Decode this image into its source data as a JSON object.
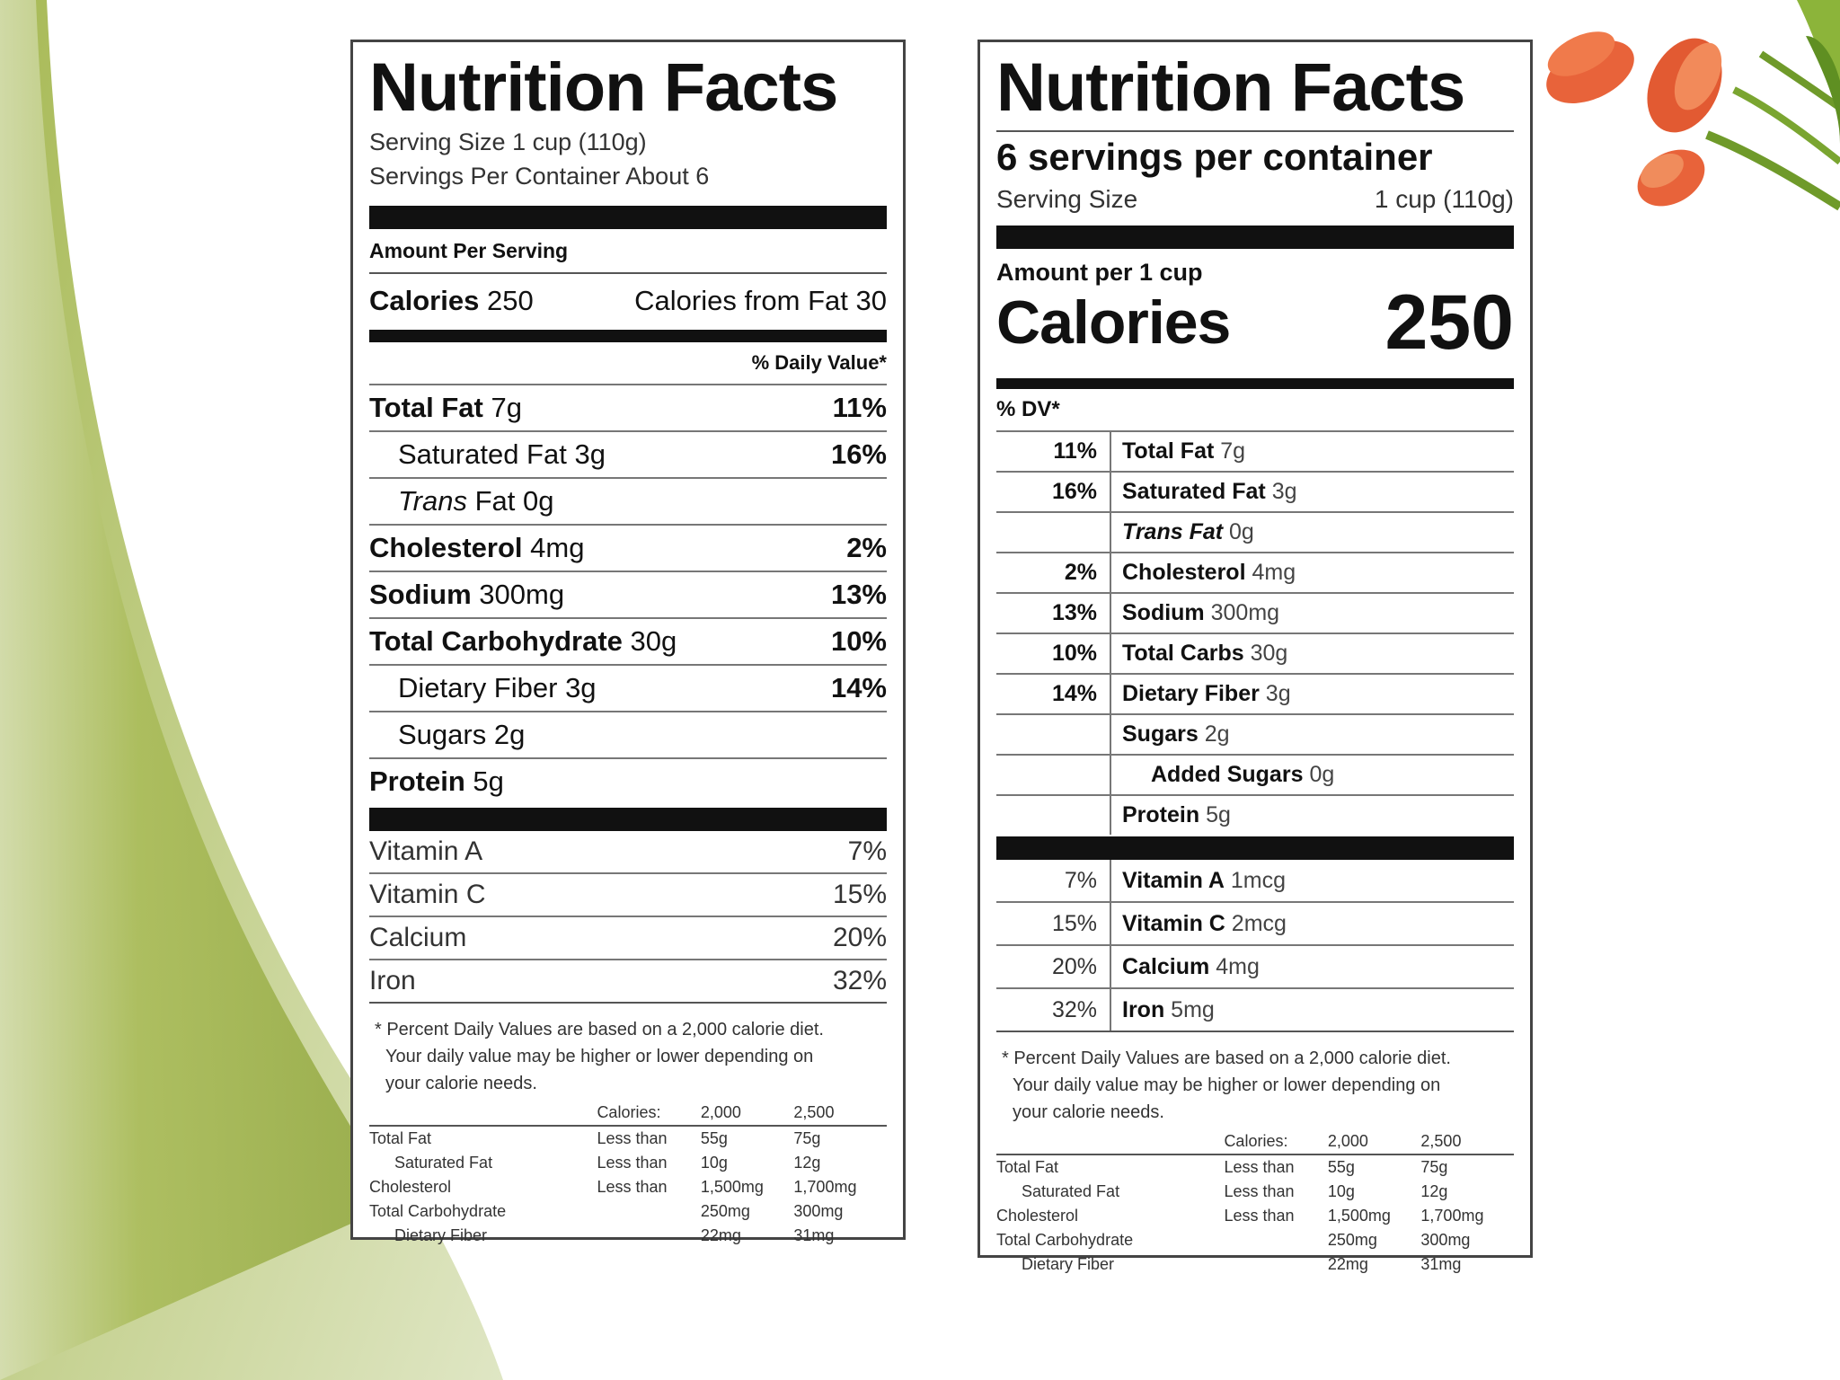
{
  "old_label": {
    "title": "Nutrition Facts",
    "serving_size": "Serving Size 1 cup (110g)",
    "servings_per_container": "Servings Per Container About 6",
    "amount_per_serving": "Amount Per Serving",
    "calories_label": "Calories",
    "calories_value": "250",
    "calories_from_fat": "Calories from Fat 30",
    "daily_value_header": "% Daily Value*",
    "nutrients": [
      {
        "name": "Total Fat",
        "amount": "7g",
        "pct": "11%",
        "bold": true,
        "indent": false
      },
      {
        "name": "Saturated Fat",
        "amount": "3g",
        "pct": "16%",
        "bold": false,
        "indent": true
      },
      {
        "name": "Trans",
        "amount": "Fat 0g",
        "pct": "",
        "bold": false,
        "indent": true
      },
      {
        "name": "Cholesterol",
        "amount": "4mg",
        "pct": "2%",
        "bold": true,
        "indent": false
      },
      {
        "name": "Sodium",
        "amount": "300mg",
        "pct": "13%",
        "bold": true,
        "indent": false
      },
      {
        "name": "Total Carbohydrate",
        "amount": "30g",
        "pct": "10%",
        "bold": true,
        "indent": false
      },
      {
        "name": "Dietary Fiber",
        "amount": "3g",
        "pct": "14%",
        "bold": false,
        "indent": true
      },
      {
        "name": "Sugars",
        "amount": "2g",
        "pct": "",
        "bold": false,
        "indent": true
      },
      {
        "name": "Protein",
        "amount": "5g",
        "pct": "",
        "bold": true,
        "indent": false
      }
    ],
    "vitamins": [
      {
        "name": "Vitamin A",
        "pct": "7%"
      },
      {
        "name": "Vitamin C",
        "pct": "15%"
      },
      {
        "name": "Calcium",
        "pct": "20%"
      },
      {
        "name": "Iron",
        "pct": "32%"
      }
    ],
    "footnote_lines": [
      "* Percent Daily Values are based on a 2,000 calorie diet.",
      "Your daily value may be higher or lower depending on",
      "your calorie needs."
    ]
  },
  "new_label": {
    "title": "Nutrition Facts",
    "servings_per_container": "6 servings per container",
    "serving_size_label": "Serving Size",
    "serving_size_value": "1 cup (110g)",
    "amount_per": "Amount per 1 cup",
    "calories_label": "Calories",
    "calories_value": "250",
    "dv_header": "% DV*",
    "rows": [
      {
        "pct": "11%",
        "name": "Total Fat",
        "amount": "7g",
        "indent": false,
        "italic": false
      },
      {
        "pct": "16%",
        "name": "Saturated Fat",
        "amount": "3g",
        "indent": false,
        "italic": false
      },
      {
        "pct": "",
        "name": "Trans Fat",
        "amount": "0g",
        "indent": false,
        "italic": true
      },
      {
        "pct": "2%",
        "name": "Cholesterol",
        "amount": "4mg",
        "indent": false,
        "italic": false
      },
      {
        "pct": "13%",
        "name": "Sodium",
        "amount": "300mg",
        "indent": false,
        "italic": false
      },
      {
        "pct": "10%",
        "name": "Total Carbs",
        "amount": "30g",
        "indent": false,
        "italic": false
      },
      {
        "pct": "14%",
        "name": "Dietary Fiber",
        "amount": "3g",
        "indent": false,
        "italic": false
      },
      {
        "pct": "",
        "name": "Sugars",
        "amount": "2g",
        "indent": false,
        "italic": false
      },
      {
        "pct": "",
        "name": "Added Sugars",
        "amount": "0g",
        "indent": true,
        "italic": false
      },
      {
        "pct": "",
        "name": "Protein",
        "amount": "5g",
        "indent": false,
        "italic": false
      }
    ],
    "vitamins": [
      {
        "pct": "7%",
        "name": "Vitamin A",
        "amount": "1mcg"
      },
      {
        "pct": "15%",
        "name": "Vitamin C",
        "amount": "2mcg"
      },
      {
        "pct": "20%",
        "name": "Calcium",
        "amount": "4mg"
      },
      {
        "pct": "32%",
        "name": "Iron",
        "amount": "5mg"
      }
    ],
    "footnote_lines": [
      "* Percent Daily Values are based on a 2,000 calorie diet.",
      "Your daily value may be higher or lower depending on",
      "your calorie needs."
    ]
  },
  "dv_table": {
    "header": [
      "",
      "Calories:",
      "2,000",
      "2,500"
    ],
    "rows": [
      {
        "name": "Total Fat",
        "qual": "Less than",
        "v1": "55g",
        "v2": "75g",
        "indent": false
      },
      {
        "name": "Saturated Fat",
        "qual": "Less than",
        "v1": "10g",
        "v2": "12g",
        "indent": true
      },
      {
        "name": "Cholesterol",
        "qual": "Less than",
        "v1": "1,500mg",
        "v2": "1,700mg",
        "indent": false
      },
      {
        "name": "Total Carbohydrate",
        "qual": "",
        "v1": "250mg",
        "v2": "300mg",
        "indent": false
      },
      {
        "name": "Dietary Fiber",
        "qual": "",
        "v1": "22mg",
        "v2": "31mg",
        "indent": true
      }
    ]
  },
  "colors": {
    "swoosh_dark": "#9db04a",
    "swoosh_light": "#d7dfb4",
    "tulip": "#e8633a",
    "leaf": "#6f9a2a"
  }
}
